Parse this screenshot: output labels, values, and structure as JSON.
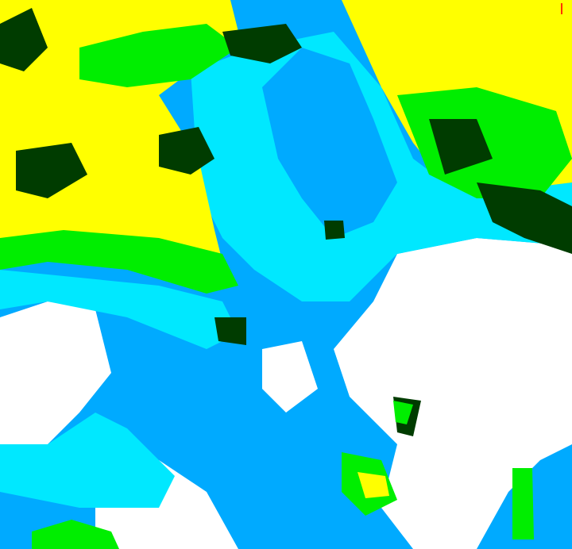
{
  "map": {
    "type": "classified raster",
    "palette": {
      "class_yellow": "#ffff00",
      "class_bright_green": "#00ee00",
      "class_dark_green": "#003c00",
      "class_cyan": "#00e8ff",
      "class_blue": "#00aaff",
      "class_white": "#ffffff",
      "marker_red": "#ff3300"
    }
  }
}
